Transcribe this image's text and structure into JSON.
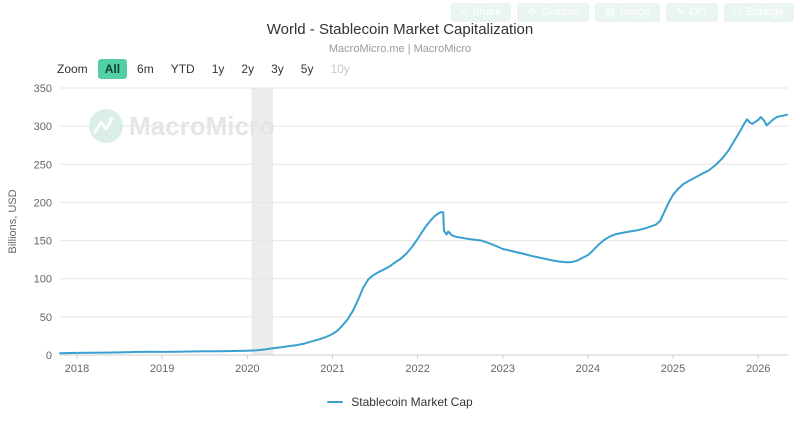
{
  "header": {
    "title": "World - Stablecoin Market Capitalization",
    "subtitle": "MacroMicro.me | MacroMicro"
  },
  "toolbar": {
    "buttons": [
      {
        "label": "Share",
        "icon": "share-icon",
        "glyph": "<"
      },
      {
        "label": "Custom",
        "icon": "gear-icon",
        "glyph": "⚙"
      },
      {
        "label": "Image",
        "icon": "image-icon",
        "glyph": "▤"
      },
      {
        "label": "DIY",
        "icon": "pencil-icon",
        "glyph": "✎"
      },
      {
        "label": "Enlarge",
        "icon": "enlarge-icon",
        "glyph": "⛶"
      }
    ]
  },
  "zoom_bar": {
    "label": "Zoom",
    "items": [
      {
        "label": "All",
        "state": "active"
      },
      {
        "label": "6m",
        "state": "normal"
      },
      {
        "label": "YTD",
        "state": "normal"
      },
      {
        "label": "1y",
        "state": "normal"
      },
      {
        "label": "2y",
        "state": "normal"
      },
      {
        "label": "3y",
        "state": "normal"
      },
      {
        "label": "5y",
        "state": "normal"
      },
      {
        "label": "10y",
        "state": "disabled"
      }
    ]
  },
  "watermark": {
    "text": "MacroMicro"
  },
  "legend": {
    "series_label": "Stablecoin Market Cap"
  },
  "colors": {
    "line": "#3AA0D0",
    "accent_active": "#52CFA5",
    "band": "#ECECEC",
    "grid": "#E6E6E6",
    "axis_line": "#CCCCCC",
    "axis_text": "#666666",
    "watermark_logo": "#DCEFE7",
    "watermark_text": "#E3E7E4",
    "toolbar_btn_bg": "#EAF5F0",
    "toolbar_btn_text": "#FFFFFF"
  },
  "chart_data": {
    "type": "line",
    "title": "World - Stablecoin Market Capitalization",
    "xlabel": "",
    "ylabel": "Billions, USD",
    "x_ticks": [
      2018,
      2019,
      2020,
      2021,
      2022,
      2023,
      2024,
      2025,
      2026
    ],
    "y_ticks": [
      0,
      50,
      100,
      150,
      200,
      250,
      300,
      350
    ],
    "xlim": [
      2017.8,
      2026.35
    ],
    "ylim": [
      0,
      350
    ],
    "grid": true,
    "legend_position": "bottom",
    "plot_band": {
      "from": 2020.05,
      "to": 2020.3,
      "color": "#ECECEC"
    },
    "series": [
      {
        "name": "Stablecoin Market Cap",
        "color": "#3AA0D0",
        "points": [
          [
            2017.8,
            2.4
          ],
          [
            2017.92,
            2.6
          ],
          [
            2018.0,
            2.8
          ],
          [
            2018.17,
            3.0
          ],
          [
            2018.33,
            3.2
          ],
          [
            2018.5,
            3.4
          ],
          [
            2018.67,
            3.9
          ],
          [
            2018.83,
            4.3
          ],
          [
            2019.0,
            4.1
          ],
          [
            2019.17,
            4.3
          ],
          [
            2019.33,
            4.6
          ],
          [
            2019.5,
            4.9
          ],
          [
            2019.67,
            5.0
          ],
          [
            2019.83,
            5.2
          ],
          [
            2020.0,
            5.6
          ],
          [
            2020.1,
            6.0
          ],
          [
            2020.2,
            7.2
          ],
          [
            2020.3,
            8.8
          ],
          [
            2020.42,
            10.5
          ],
          [
            2020.5,
            11.8
          ],
          [
            2020.58,
            13.0
          ],
          [
            2020.67,
            15.0
          ],
          [
            2020.75,
            17.5
          ],
          [
            2020.83,
            20.0
          ],
          [
            2020.92,
            23.5
          ],
          [
            2021.0,
            27.5
          ],
          [
            2021.06,
            32
          ],
          [
            2021.12,
            39
          ],
          [
            2021.18,
            47
          ],
          [
            2021.24,
            58
          ],
          [
            2021.3,
            72
          ],
          [
            2021.36,
            88
          ],
          [
            2021.42,
            99
          ],
          [
            2021.47,
            104
          ],
          [
            2021.53,
            108
          ],
          [
            2021.6,
            112
          ],
          [
            2021.67,
            116
          ],
          [
            2021.73,
            121
          ],
          [
            2021.8,
            126
          ],
          [
            2021.87,
            133
          ],
          [
            2021.93,
            141
          ],
          [
            2022.0,
            152
          ],
          [
            2022.05,
            161
          ],
          [
            2022.1,
            169
          ],
          [
            2022.15,
            176
          ],
          [
            2022.2,
            182
          ],
          [
            2022.25,
            186
          ],
          [
            2022.28,
            187.5
          ],
          [
            2022.3,
            187
          ],
          [
            2022.31,
            163
          ],
          [
            2022.34,
            158
          ],
          [
            2022.36,
            162
          ],
          [
            2022.4,
            157
          ],
          [
            2022.45,
            155
          ],
          [
            2022.5,
            154
          ],
          [
            2022.58,
            152.5
          ],
          [
            2022.67,
            151
          ],
          [
            2022.75,
            150
          ],
          [
            2022.83,
            147
          ],
          [
            2022.92,
            143
          ],
          [
            2023.0,
            139
          ],
          [
            2023.08,
            137
          ],
          [
            2023.17,
            134.5
          ],
          [
            2023.25,
            132.5
          ],
          [
            2023.33,
            130
          ],
          [
            2023.42,
            128
          ],
          [
            2023.5,
            126
          ],
          [
            2023.58,
            124
          ],
          [
            2023.67,
            122.5
          ],
          [
            2023.75,
            121.5
          ],
          [
            2023.8,
            121.8
          ],
          [
            2023.87,
            123.5
          ],
          [
            2023.93,
            127
          ],
          [
            2024.0,
            131
          ],
          [
            2024.06,
            137
          ],
          [
            2024.12,
            144
          ],
          [
            2024.18,
            150
          ],
          [
            2024.25,
            155
          ],
          [
            2024.33,
            158.5
          ],
          [
            2024.42,
            160.5
          ],
          [
            2024.5,
            162
          ],
          [
            2024.58,
            163.5
          ],
          [
            2024.67,
            166
          ],
          [
            2024.75,
            169
          ],
          [
            2024.8,
            171
          ],
          [
            2024.85,
            176
          ],
          [
            2024.9,
            188
          ],
          [
            2024.95,
            200
          ],
          [
            2025.0,
            210
          ],
          [
            2025.06,
            218
          ],
          [
            2025.12,
            224
          ],
          [
            2025.18,
            228
          ],
          [
            2025.25,
            232
          ],
          [
            2025.33,
            237
          ],
          [
            2025.42,
            242
          ],
          [
            2025.5,
            249
          ],
          [
            2025.58,
            258
          ],
          [
            2025.65,
            268
          ],
          [
            2025.72,
            281
          ],
          [
            2025.78,
            292
          ],
          [
            2025.83,
            302
          ],
          [
            2025.87,
            309
          ],
          [
            2025.9,
            305
          ],
          [
            2025.93,
            303
          ],
          [
            2026.0,
            308
          ],
          [
            2026.03,
            312
          ],
          [
            2026.07,
            307
          ],
          [
            2026.1,
            301
          ],
          [
            2026.14,
            305
          ],
          [
            2026.18,
            309
          ],
          [
            2026.22,
            312
          ],
          [
            2026.26,
            313
          ],
          [
            2026.3,
            314
          ],
          [
            2026.34,
            315
          ]
        ]
      }
    ]
  }
}
